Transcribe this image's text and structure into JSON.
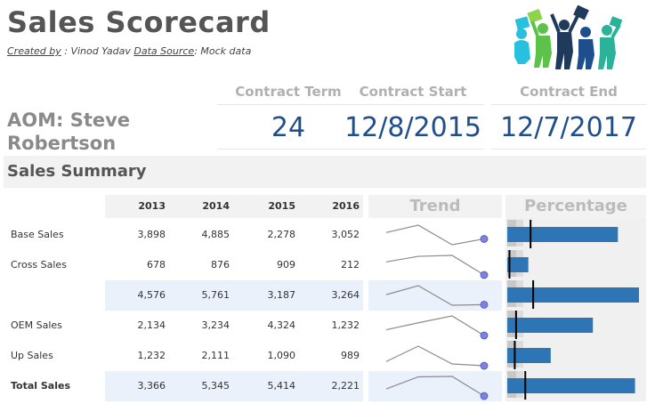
{
  "header": {
    "title": "Sales Scorecard",
    "created_by_label": "Created by",
    "created_by_value": " : Vinod Yadav ",
    "data_source_label": "Data Source",
    "data_source_value": ": Mock data"
  },
  "aom": {
    "line1": "AOM: Steve",
    "line2": "Robertson"
  },
  "contract": [
    {
      "label": "Contract Term",
      "value": "24"
    },
    {
      "label": "Contract Start",
      "value": "12/8/2015"
    },
    {
      "label": "Contract End",
      "value": "12/7/2017"
    }
  ],
  "summary": {
    "title": "Sales Summary",
    "years": [
      "2013",
      "2014",
      "2015",
      "2016"
    ],
    "trend_label": "Trend",
    "percentage_label": "Percentage",
    "rows": [
      {
        "label": "Base Sales",
        "values": [
          "3,898",
          "4,885",
          "2,278",
          "3,052"
        ],
        "nums": [
          3898,
          4885,
          2278,
          3052
        ],
        "highlight": false,
        "bold": false,
        "pct": 0.84,
        "marker": 0.17
      },
      {
        "label": "Cross Sales",
        "values": [
          "678",
          "876",
          "909",
          "212"
        ],
        "nums": [
          678,
          876,
          909,
          212
        ],
        "highlight": false,
        "bold": false,
        "pct": 0.16,
        "marker": 0.01
      },
      {
        "label": "",
        "values": [
          "4,576",
          "5,761",
          "3,187",
          "3,264"
        ],
        "nums": [
          4576,
          5761,
          3187,
          3264
        ],
        "highlight": true,
        "bold": false,
        "pct": 1.0,
        "marker": 0.19
      },
      {
        "label": "OEM Sales",
        "values": [
          "2,134",
          "3,234",
          "4,324",
          "1,232"
        ],
        "nums": [
          2134,
          3234,
          4324,
          1232
        ],
        "highlight": false,
        "bold": false,
        "pct": 0.65,
        "marker": 0.06
      },
      {
        "label": "Up Sales",
        "values": [
          "1,232",
          "2,111",
          "1,090",
          "989"
        ],
        "nums": [
          1232,
          2111,
          1090,
          989
        ],
        "highlight": false,
        "bold": false,
        "pct": 0.33,
        "marker": 0.05
      },
      {
        "label": "Total Sales",
        "values": [
          "3,366",
          "5,345",
          "5,414",
          "2,221"
        ],
        "nums": [
          3366,
          5345,
          5414,
          2221
        ],
        "highlight": true,
        "bold": true,
        "pct": 0.97,
        "marker": 0.13
      }
    ]
  },
  "colors": {
    "bar": "#2e75b6",
    "sparkline": "#8c8c8c",
    "spark_dot": "#7b83e0",
    "highlight_row": "#eaf1fb",
    "value_blue": "#1f4e8c"
  }
}
